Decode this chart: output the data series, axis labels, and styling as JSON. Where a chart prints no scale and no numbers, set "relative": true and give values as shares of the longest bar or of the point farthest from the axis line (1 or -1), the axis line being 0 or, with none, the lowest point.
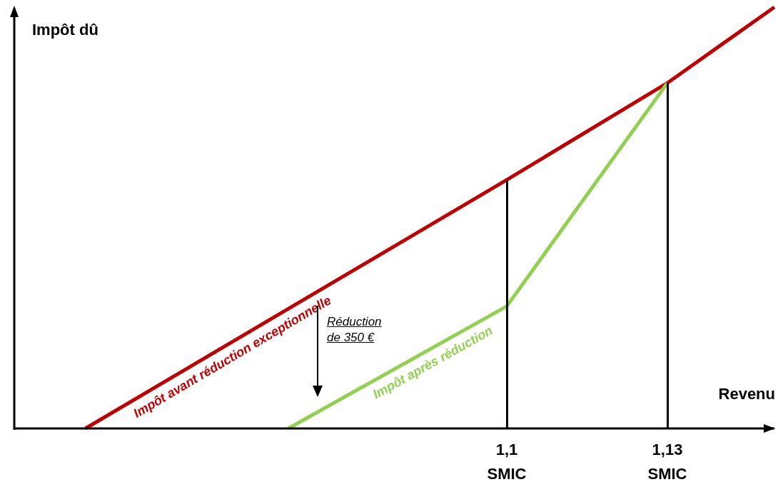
{
  "chart_data": {
    "type": "line",
    "relative": true,
    "xlabel": "Revenu",
    "ylabel": "Impôt dû",
    "xlim": [
      1.008,
      1.15
    ],
    "xticks": [
      {
        "value": 1.1,
        "label": "1,1\nSMIC"
      },
      {
        "value": 1.13,
        "label": "1,13\nSMIC"
      }
    ],
    "series": [
      {
        "name": "Impôt avant réduction exceptionnelle",
        "color": "#c00000",
        "x": [
          1.0213,
          1.1,
          1.13,
          1.15
        ],
        "values": [
          0,
          0.59,
          0.82,
          1
        ]
      },
      {
        "name": "Impôt après réduction",
        "color": "#92d050",
        "x": [
          1.0592,
          1.1,
          1.13
        ],
        "values": [
          0,
          0.29,
          0.82
        ]
      }
    ],
    "ref_lines": [
      {
        "axis": "x",
        "value": 1.1,
        "color": "#000000"
      },
      {
        "axis": "x",
        "value": 1.13,
        "color": "#000000"
      }
    ],
    "annotations": [
      "Réduction\nde 350 €"
    ],
    "grid": false,
    "legend": false,
    "marker": "none",
    "line_style": "solid"
  }
}
